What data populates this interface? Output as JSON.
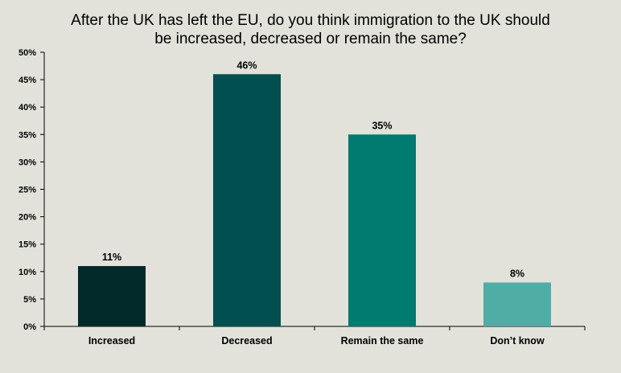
{
  "chart_data": {
    "type": "bar",
    "title_lines": [
      "After the UK has left the EU, do you think immigration to the UK should",
      "be increased, decreased or remain the same?"
    ],
    "categories": [
      "Increased",
      "Decreased",
      "Remain the same",
      "Don’t know"
    ],
    "values": [
      11,
      46,
      35,
      8
    ],
    "value_labels": [
      "11%",
      "46%",
      "35%",
      "8%"
    ],
    "colors": [
      "#032a2b",
      "#024f4f",
      "#017a6f",
      "#4fada5"
    ],
    "ylim": [
      0,
      50
    ],
    "yticks": [
      0,
      5,
      10,
      15,
      20,
      25,
      30,
      35,
      40,
      45,
      50
    ],
    "ytick_labels": [
      "0%",
      "5%",
      "10%",
      "15%",
      "20%",
      "25%",
      "30%",
      "35%",
      "40%",
      "45%",
      "50%"
    ],
    "xlabel": "",
    "ylabel": "",
    "grid": false
  }
}
